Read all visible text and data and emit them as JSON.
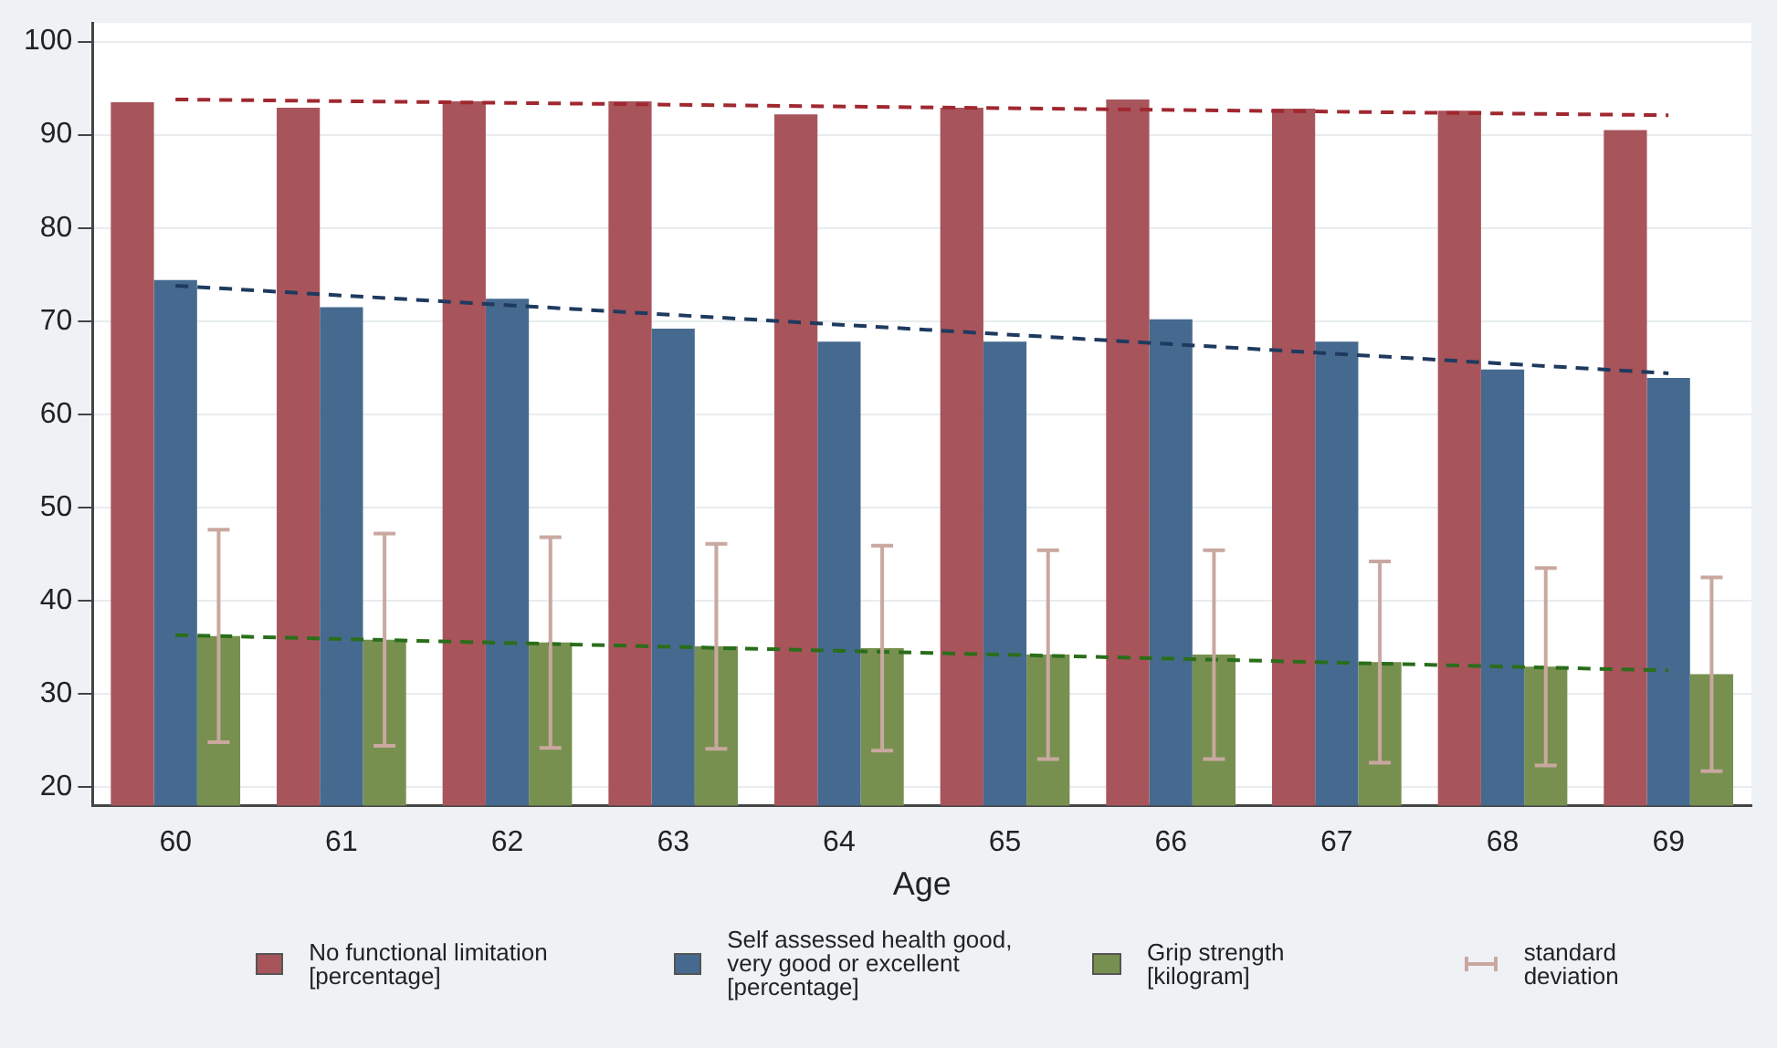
{
  "chart_data": {
    "type": "bar",
    "xlabel": "Age",
    "categories": [
      "60",
      "61",
      "62",
      "63",
      "64",
      "65",
      "66",
      "67",
      "68",
      "69"
    ],
    "series": [
      {
        "name": "No functional limitation [percentage]",
        "color": "#a8545b",
        "values": [
          93.5,
          92.9,
          93.6,
          93.6,
          92.2,
          92.9,
          93.8,
          92.8,
          92.6,
          90.5
        ]
      },
      {
        "name": "Self assessed health good, very good or excellent [percentage]",
        "color": "#466a8f",
        "values": [
          74.4,
          71.5,
          72.4,
          69.2,
          67.8,
          67.8,
          70.2,
          67.8,
          64.8,
          63.9
        ]
      },
      {
        "name": "Grip strength [kilogram]",
        "color": "#77904f",
        "values": [
          36.2,
          35.8,
          35.5,
          35.1,
          34.9,
          34.2,
          34.2,
          33.4,
          32.9,
          32.1
        ],
        "errors": [
          11.4,
          11.4,
          11.3,
          11,
          11,
          11.2,
          11.2,
          10.8,
          10.6,
          10.4
        ]
      },
      {
        "type": "line",
        "color": "#a02830",
        "line_style": "dashed",
        "x": [
          "60",
          "69"
        ],
        "values": [
          93.8,
          92.1
        ]
      },
      {
        "type": "line",
        "color": "#1f3a5f",
        "line_style": "dashed",
        "x": [
          "60",
          "69"
        ],
        "values": [
          73.8,
          64.4
        ]
      },
      {
        "type": "line",
        "color": "#2a6e1a",
        "line_style": "dashed",
        "x": [
          "60",
          "69"
        ],
        "values": [
          36.3,
          32.5
        ]
      }
    ],
    "ylim": [
      18,
      102
    ],
    "yticks": [
      20,
      30,
      40,
      50,
      60,
      70,
      80,
      90,
      100
    ],
    "grid": "y",
    "legend": "bottom",
    "marker": "none",
    "annotations": [
      "standard deviation"
    ]
  }
}
